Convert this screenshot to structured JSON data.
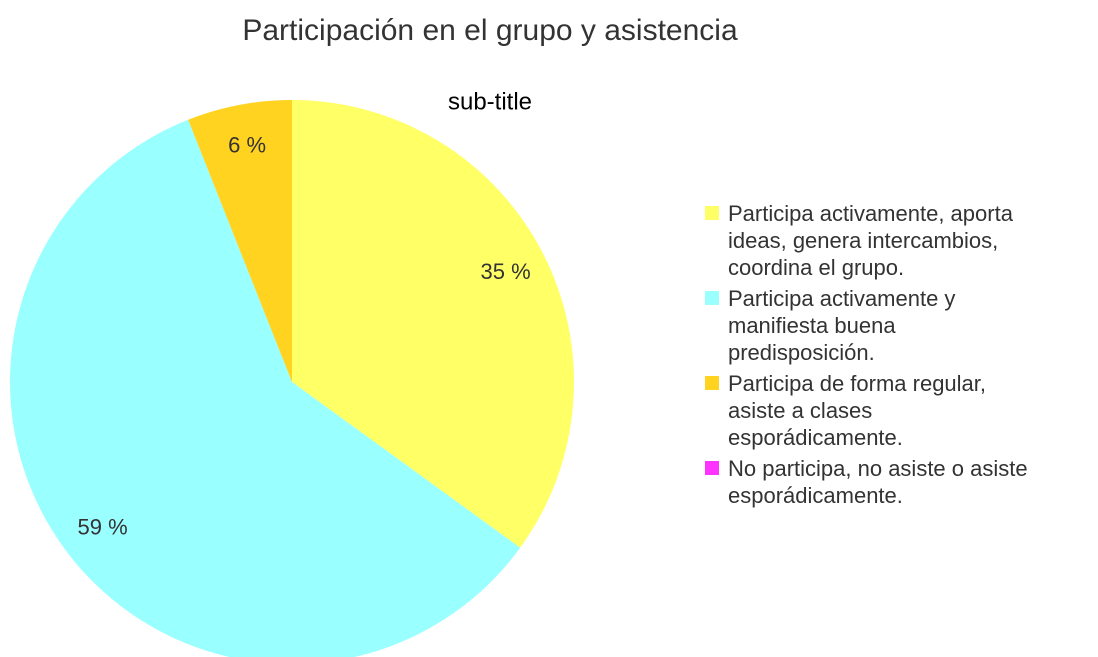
{
  "chart_data": {
    "type": "pie",
    "title": "Participación en el grupo y asistencia",
    "subtitle": "sub-title",
    "categories": [
      "Participa activamente, aporta ideas, genera intercambios, coordina el grupo.",
      "Participa activamente y manifiesta buena predisposición.",
      "Participa de forma regular, asiste a clases esporádicamente.",
      "No participa, no asiste o asiste esporádicamente."
    ],
    "values": [
      35,
      59,
      6,
      0
    ],
    "value_labels": [
      "35 %",
      "59 %",
      "6 %",
      null
    ],
    "colors": [
      "#ffff66",
      "#99ffff",
      "#ffd320",
      "#ff33ff"
    ]
  }
}
